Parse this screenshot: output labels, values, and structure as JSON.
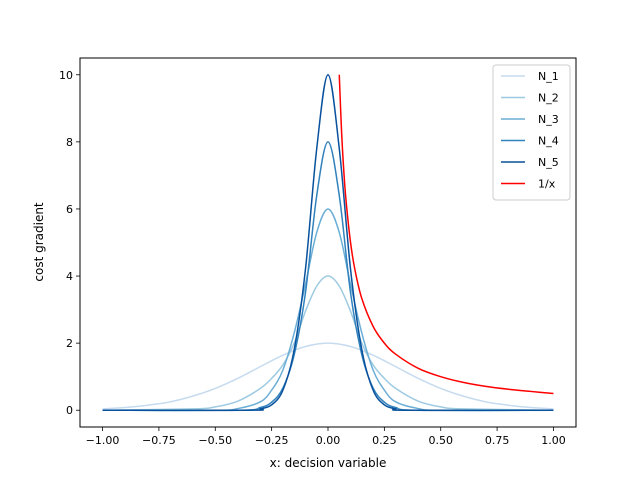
{
  "chart_data": {
    "type": "line",
    "title": "",
    "xlabel": "x: decision variable",
    "ylabel": "cost gradient",
    "xlim": [
      -1.1,
      1.1
    ],
    "ylim": [
      -0.5,
      10.5
    ],
    "grid": false,
    "legend_position": "top-right",
    "x_ticks": [
      -1.0,
      -0.75,
      -0.5,
      -0.25,
      0.0,
      0.25,
      0.5,
      0.75,
      1.0
    ],
    "x_tick_labels": [
      "−1.00",
      "−0.75",
      "−0.50",
      "−0.25",
      "0.00",
      "0.25",
      "0.50",
      "0.75",
      "1.00"
    ],
    "y_ticks": [
      0,
      2,
      4,
      6,
      8,
      10
    ],
    "y_tick_labels": [
      "0",
      "2",
      "4",
      "6",
      "8",
      "10"
    ],
    "series": [
      {
        "name": "N_1",
        "color": "#c6dbef",
        "x": [
          -1.0,
          -0.9,
          -0.8,
          -0.7,
          -0.6,
          -0.5,
          -0.4,
          -0.3,
          -0.2,
          -0.1,
          0.0,
          0.1,
          0.2,
          0.3,
          0.4,
          0.5,
          0.6,
          0.7,
          0.8,
          0.9,
          1.0
        ],
        "y": [
          0.04,
          0.08,
          0.15,
          0.25,
          0.42,
          0.65,
          0.95,
          1.3,
          1.64,
          1.9,
          2.0,
          1.9,
          1.64,
          1.3,
          0.95,
          0.65,
          0.42,
          0.25,
          0.15,
          0.08,
          0.04
        ]
      },
      {
        "name": "N_2",
        "color": "#9ecae1",
        "x": [
          -1.0,
          -0.6,
          -0.5,
          -0.4,
          -0.3,
          -0.25,
          -0.2,
          -0.15,
          -0.1,
          -0.05,
          0.0,
          0.05,
          0.1,
          0.15,
          0.2,
          0.25,
          0.3,
          0.4,
          0.5,
          0.6,
          1.0
        ],
        "y": [
          0.0,
          0.04,
          0.1,
          0.27,
          0.65,
          0.95,
          1.35,
          2.0,
          2.95,
          3.7,
          4.0,
          3.7,
          2.95,
          2.0,
          1.35,
          0.95,
          0.65,
          0.27,
          0.1,
          0.04,
          0.0
        ]
      },
      {
        "name": "N_3",
        "color": "#6baed6",
        "x": [
          -1.0,
          -0.5,
          -0.4,
          -0.3,
          -0.25,
          -0.2,
          -0.15,
          -0.1,
          -0.05,
          0.0,
          0.05,
          0.1,
          0.15,
          0.2,
          0.25,
          0.3,
          0.4,
          0.5,
          1.0
        ],
        "y": [
          0.0,
          0.0,
          0.05,
          0.25,
          0.6,
          1.2,
          2.3,
          3.75,
          5.3,
          6.0,
          5.3,
          3.75,
          2.3,
          1.2,
          0.6,
          0.25,
          0.05,
          0.0,
          0.0
        ]
      },
      {
        "name": "N_4",
        "color": "#3182bd",
        "x": [
          -1.0,
          -0.4,
          -0.3,
          -0.25,
          -0.2,
          -0.15,
          -0.1,
          -0.05,
          0.0,
          0.05,
          0.1,
          0.15,
          0.2,
          0.25,
          0.3,
          0.4,
          1.0
        ],
        "y": [
          0.0,
          0.0,
          0.08,
          0.24,
          0.66,
          1.65,
          3.5,
          6.4,
          8.0,
          6.4,
          3.5,
          1.65,
          0.66,
          0.24,
          0.08,
          0.0,
          0.0
        ]
      },
      {
        "name": "N_5",
        "color": "#08519c",
        "x": [
          -1.0,
          -0.35,
          -0.3,
          -0.25,
          -0.2,
          -0.15,
          -0.1,
          -0.05,
          0.0,
          0.05,
          0.1,
          0.15,
          0.2,
          0.25,
          0.3,
          0.35,
          1.0
        ],
        "y": [
          0.0,
          0.0,
          0.04,
          0.16,
          0.6,
          1.8,
          4.2,
          7.8,
          10.0,
          7.8,
          4.2,
          1.8,
          0.6,
          0.16,
          0.04,
          0.0,
          0.0
        ]
      },
      {
        "name": "1/x",
        "color": "#ff0000",
        "x": [
          0.05,
          0.06,
          0.07,
          0.08,
          0.1,
          0.12,
          0.15,
          0.2,
          0.25,
          0.3,
          0.4,
          0.5,
          0.6,
          0.7,
          0.8,
          0.9,
          1.0
        ],
        "y": [
          10.0,
          8.33,
          7.14,
          6.25,
          5.0,
          4.17,
          3.33,
          2.5,
          2.0,
          1.67,
          1.25,
          1.0,
          0.83,
          0.71,
          0.625,
          0.56,
          0.5
        ]
      }
    ]
  }
}
